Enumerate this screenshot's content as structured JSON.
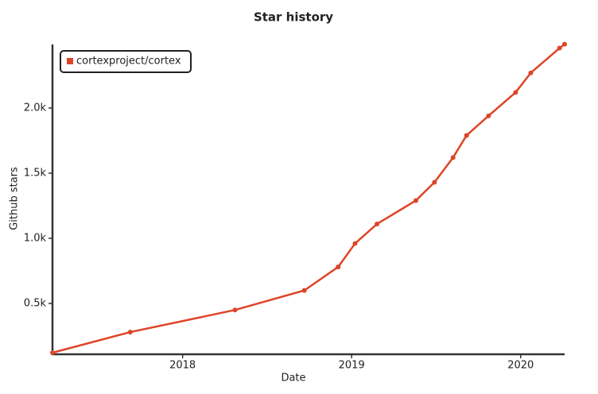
{
  "chart_data": {
    "type": "line",
    "title": "Star history",
    "x_label": "Date",
    "y_label": "Github stars",
    "x": [
      2017.23,
      2017.69,
      2018.31,
      2018.72,
      2018.92,
      2019.02,
      2019.15,
      2019.38,
      2019.49,
      2019.6,
      2019.68,
      2019.81,
      2019.97,
      2020.06,
      2020.23,
      2020.26
    ],
    "series": [
      {
        "name": "cortexproject/cortex",
        "color": "#dd4528",
        "values": [
          122,
          280,
          450,
          600,
          780,
          960,
          1110,
          1290,
          1430,
          1620,
          1790,
          1940,
          2120,
          2270,
          2460,
          2490
        ]
      }
    ],
    "xlim": [
      2017.23,
      2020.26
    ],
    "xticks": [
      2018,
      2019,
      2020
    ],
    "ylim": [
      122,
      2500
    ],
    "yticks": [
      {
        "value": 500,
        "label": "0.5k"
      },
      {
        "value": 1000,
        "label": "1.0k"
      },
      {
        "value": 1500,
        "label": "1.5k"
      },
      {
        "value": 2000,
        "label": "2.0k"
      }
    ],
    "legend": "top-left"
  }
}
